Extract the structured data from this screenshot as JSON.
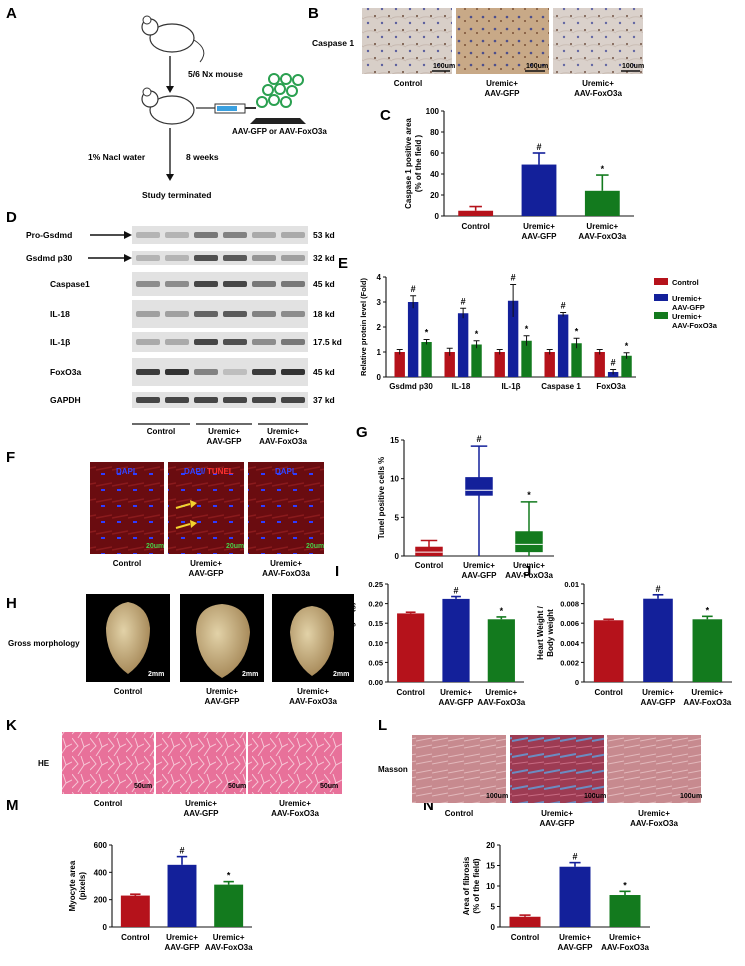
{
  "colors": {
    "control": "#b5121b",
    "uremic_gfp": "#13209a",
    "uremic_foxo3a": "#137a1e",
    "he_stain": "#e86a94",
    "masson_bg": "#c98a8e",
    "tunel_bg": "#6a0c10",
    "dapi": "#3344ff",
    "ihc_bg": "#d9cfc9",
    "heart": "#c9b48a"
  },
  "groups": {
    "control": "Control",
    "uremic_gfp_1": "Uremic+",
    "uremic_gfp_2": "AAV-GFP",
    "uremic_foxo3a_1": "Uremic+",
    "uremic_foxo3a_2": "AAV-FoxO3a"
  },
  "panelA": {
    "letter": "A",
    "step1": "5/6 Nx mouse",
    "injection": "AAV-GFP or AAV-FoxO3a",
    "water": "1% Nacl water",
    "duration": "8 weeks",
    "end": "Study terminated"
  },
  "panelB": {
    "letter": "B",
    "row_label": "Caspase 1",
    "scale": "100um"
  },
  "panelD": {
    "letter": "D",
    "rows": [
      {
        "label": "Pro-Gsdmd",
        "size": "53 kd"
      },
      {
        "label": "Gsdmd  p30",
        "size": "32 kd"
      },
      {
        "label": "Caspase1",
        "size": "45 kd"
      },
      {
        "label": "IL-18",
        "size": "18 kd"
      },
      {
        "label": "IL-1β",
        "size": "17.5 kd"
      },
      {
        "label": "FoxO3a",
        "size": "45 kd"
      },
      {
        "label": "GAPDH",
        "size": "37 kd"
      }
    ]
  },
  "panelF": {
    "letter": "F",
    "dapi": "DAPI",
    "dapi_tunel_1": "DAPI/",
    "dapi_tunel_2": "TUNEL",
    "scale": "20um"
  },
  "panelH": {
    "letter": "H",
    "row_label": "Gross morphology",
    "scale": "2mm"
  },
  "panelK": {
    "letter": "K",
    "row_label": "HE",
    "scale": "50um"
  },
  "panelL": {
    "letter": "L",
    "row_label": "Masson",
    "scale": "100um"
  },
  "chart_data": [
    {
      "id": "C",
      "type": "bar",
      "categories": [
        "Control",
        "Uremic+ AAV-GFP",
        "Uremic+ AAV-FoxO3a"
      ],
      "values": [
        5,
        49,
        24
      ],
      "errors": [
        4,
        11,
        15
      ],
      "sig": [
        "",
        "#",
        "*"
      ],
      "ylabel": "Caspase 1 positive area\n(% of the field )",
      "ylim": [
        0,
        100
      ],
      "yticks": [
        0,
        20,
        40,
        60,
        80,
        100
      ]
    },
    {
      "id": "E",
      "type": "bar",
      "categories": [
        "Gsdmd  p30",
        "IL-18",
        "IL-1β",
        "Caspase 1",
        "FoxO3a"
      ],
      "series": [
        {
          "name": "Control",
          "values": [
            1.0,
            1.0,
            1.0,
            1.0,
            1.0
          ],
          "errors": [
            0.1,
            0.15,
            0.1,
            0.1,
            0.1
          ],
          "sig": [
            "",
            "",
            "",
            "",
            ""
          ]
        },
        {
          "name": "Uremic+ AAV-GFP",
          "values": [
            3.0,
            2.55,
            3.05,
            2.5,
            0.2
          ],
          "errors": [
            0.25,
            0.2,
            0.65,
            0.08,
            0.1
          ],
          "sig": [
            "#",
            "#",
            "#",
            "#",
            "#"
          ]
        },
        {
          "name": "Uremic+ AAV-FoxO3a",
          "values": [
            1.4,
            1.3,
            1.45,
            1.35,
            0.85
          ],
          "errors": [
            0.1,
            0.15,
            0.2,
            0.2,
            0.12
          ],
          "sig": [
            "*",
            "*",
            "*",
            "*",
            "*"
          ]
        }
      ],
      "ylabel": "Relative protein level (Fold)",
      "ylim": [
        0,
        4
      ],
      "yticks": [
        0,
        1,
        2,
        3,
        4
      ],
      "legend_position": "right"
    },
    {
      "id": "G",
      "type": "box",
      "categories": [
        "Control",
        "Uremic+ AAV-GFP",
        "Uremic+ AAV-FoxO3a"
      ],
      "boxes": [
        {
          "min": 0,
          "q1": 0,
          "median": 0.5,
          "q3": 1.2,
          "max": 2
        },
        {
          "min": 0,
          "q1": 7.8,
          "median": 8.5,
          "q3": 10.2,
          "max": 14.2
        },
        {
          "min": 0,
          "q1": 0.5,
          "median": 1.5,
          "q3": 3.2,
          "max": 7
        }
      ],
      "sig": [
        "",
        "#",
        "*"
      ],
      "ylabel": "Tunel positive cells %",
      "ylim": [
        0,
        15
      ],
      "yticks": [
        0,
        5,
        10,
        15
      ]
    },
    {
      "id": "I",
      "type": "bar",
      "categories": [
        "Control",
        "Uremic+ AAV-GFP",
        "Uremic+ AAV-FoxO3a"
      ],
      "values": [
        0.175,
        0.212,
        0.16
      ],
      "errors": [
        0.003,
        0.006,
        0.006
      ],
      "sig": [
        "",
        "#",
        "*"
      ],
      "ylabel": "Heart Weight (g)",
      "ylim": [
        0,
        0.25
      ],
      "yticks": [
        0.0,
        0.05,
        0.1,
        0.15,
        0.2,
        0.25
      ],
      "ytick_labels": [
        "0.00",
        "0.05",
        "0.10",
        "0.15",
        "0.20",
        "0.25"
      ]
    },
    {
      "id": "J",
      "type": "bar",
      "categories": [
        "Control",
        "Uremic+ AAV-GFP",
        "Uremic+ AAV-FoxO3a"
      ],
      "values": [
        0.0063,
        0.0085,
        0.0064
      ],
      "errors": [
        0.0001,
        0.0004,
        0.0003
      ],
      "sig": [
        "",
        "#",
        "*"
      ],
      "ylabel": "Heart Weight /\nBody weight",
      "ylim": [
        0,
        0.01
      ],
      "yticks": [
        0,
        0.002,
        0.004,
        0.006,
        0.008,
        0.01
      ],
      "ytick_labels": [
        "0",
        "0.002",
        "0.004",
        "0.006",
        "0.008",
        "0.01"
      ]
    },
    {
      "id": "M",
      "type": "bar",
      "categories": [
        "Control",
        "Uremic+ AAV-GFP",
        "Uremic+ AAV-FoxO3a"
      ],
      "values": [
        230,
        455,
        310
      ],
      "errors": [
        10,
        60,
        22
      ],
      "sig": [
        "",
        "#",
        "*"
      ],
      "ylabel": "Myocyte area\n(pixels)",
      "ylim": [
        0,
        600
      ],
      "yticks": [
        0,
        200,
        400,
        600
      ]
    },
    {
      "id": "N",
      "type": "bar",
      "categories": [
        "Control",
        "Uremic+ AAV-GFP",
        "Uremic+ AAV-FoxO3a"
      ],
      "values": [
        2.5,
        14.7,
        7.8
      ],
      "errors": [
        0.4,
        1.0,
        0.9
      ],
      "sig": [
        "",
        "#",
        "*"
      ],
      "ylabel": "Area of fibrosis\n(% of the field)",
      "ylim": [
        0,
        20
      ],
      "yticks": [
        0,
        5,
        10,
        15,
        20
      ]
    }
  ]
}
